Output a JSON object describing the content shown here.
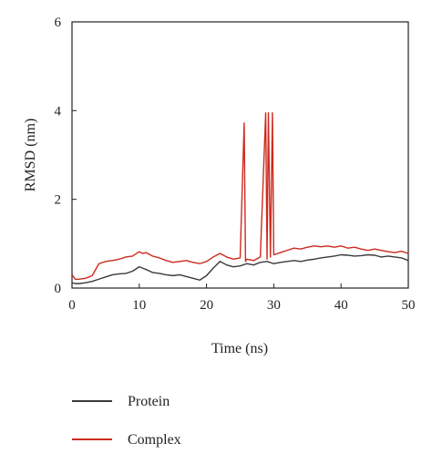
{
  "chart_data": {
    "type": "line",
    "title": "",
    "xlabel": "Time (ns)",
    "ylabel": "RMSD (nm)",
    "xlim": [
      0,
      50
    ],
    "ylim": [
      0,
      6
    ],
    "xticks": [
      0,
      10,
      20,
      30,
      40,
      50
    ],
    "yticks": [
      0,
      2,
      4,
      6
    ],
    "grid": false,
    "legend_position": "bottom-left",
    "series": [
      {
        "name": "Protein",
        "color": "#3a3a3a",
        "x": [
          0,
          0.5,
          1,
          2,
          3,
          4,
          5,
          6,
          7,
          8,
          9,
          10,
          10.5,
          11,
          12,
          13,
          14,
          15,
          16,
          17,
          18,
          19,
          20,
          21,
          22,
          23,
          24,
          25,
          26,
          27,
          28,
          29,
          30,
          31,
          32,
          33,
          34,
          35,
          36,
          37,
          38,
          39,
          40,
          41,
          42,
          43,
          44,
          45,
          46,
          47,
          48,
          49,
          50
        ],
        "y": [
          0.12,
          0.1,
          0.1,
          0.12,
          0.15,
          0.2,
          0.25,
          0.3,
          0.32,
          0.33,
          0.38,
          0.48,
          0.45,
          0.42,
          0.35,
          0.33,
          0.3,
          0.28,
          0.3,
          0.26,
          0.22,
          0.18,
          0.28,
          0.45,
          0.6,
          0.52,
          0.48,
          0.5,
          0.55,
          0.52,
          0.58,
          0.6,
          0.55,
          0.58,
          0.6,
          0.62,
          0.6,
          0.63,
          0.65,
          0.68,
          0.7,
          0.72,
          0.75,
          0.74,
          0.72,
          0.73,
          0.75,
          0.74,
          0.7,
          0.72,
          0.7,
          0.68,
          0.62
        ]
      },
      {
        "name": "Complex",
        "color": "#cc2a1e",
        "x": [
          0,
          0.5,
          1,
          2,
          3,
          4,
          5,
          6,
          7,
          8,
          9,
          10,
          10.5,
          11,
          12,
          13,
          14,
          15,
          16,
          17,
          18,
          19,
          20,
          21,
          22,
          23,
          24,
          25,
          25.6,
          25.8,
          26,
          27,
          28,
          28.8,
          29,
          29.2,
          29.5,
          29.8,
          30,
          31,
          32,
          33,
          34,
          35,
          36,
          37,
          38,
          39,
          40,
          41,
          42,
          43,
          44,
          45,
          46,
          47,
          48,
          49,
          50
        ],
        "y": [
          0.3,
          0.2,
          0.2,
          0.22,
          0.28,
          0.55,
          0.6,
          0.62,
          0.65,
          0.7,
          0.72,
          0.82,
          0.78,
          0.8,
          0.72,
          0.68,
          0.62,
          0.58,
          0.6,
          0.62,
          0.58,
          0.55,
          0.6,
          0.7,
          0.78,
          0.7,
          0.65,
          0.68,
          3.72,
          0.6,
          0.65,
          0.62,
          0.7,
          3.95,
          0.65,
          3.95,
          0.7,
          3.95,
          0.75,
          0.8,
          0.85,
          0.9,
          0.88,
          0.92,
          0.95,
          0.93,
          0.95,
          0.92,
          0.95,
          0.9,
          0.92,
          0.88,
          0.85,
          0.88,
          0.85,
          0.82,
          0.8,
          0.83,
          0.78
        ]
      }
    ]
  }
}
